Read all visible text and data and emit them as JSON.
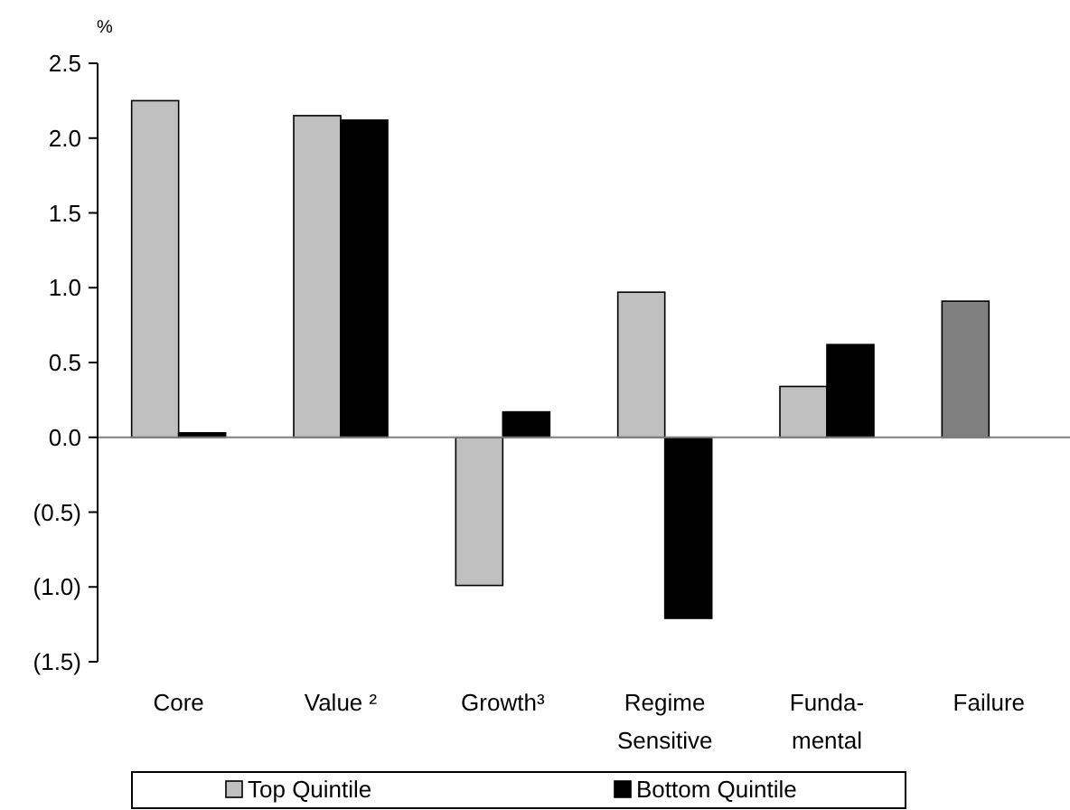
{
  "chart_data": {
    "type": "bar",
    "ylabel": "%",
    "categories": [
      "Core",
      "Value ²",
      "Growth³",
      "Regime\nSensitive",
      "Funda-\nmental",
      "Failure"
    ],
    "series": [
      {
        "name": "Top Quintile",
        "color": "#c0c0c0",
        "colors": [
          "#c0c0c0",
          "#c0c0c0",
          "#c0c0c0",
          "#c0c0c0",
          "#c0c0c0",
          "#808080"
        ],
        "values": [
          2.25,
          2.15,
          -0.99,
          0.97,
          0.34,
          0.91
        ]
      },
      {
        "name": "Bottom Quintile",
        "color": "#000000",
        "values": [
          0.03,
          2.12,
          0.17,
          -1.21,
          0.62,
          null
        ]
      }
    ],
    "ylim": [
      -1.5,
      2.5
    ],
    "yticks": [
      {
        "value": -1.5,
        "label": "(1.5)"
      },
      {
        "value": -1,
        "label": "(1.0)"
      },
      {
        "value": -0.5,
        "label": "(0.5)"
      },
      {
        "value": 0,
        "label": "0.0"
      },
      {
        "value": 0.5,
        "label": "0.5"
      },
      {
        "value": 1,
        "label": "1.0"
      },
      {
        "value": 1.5,
        "label": "1.5"
      },
      {
        "value": 2,
        "label": "2.0"
      },
      {
        "value": 2.5,
        "label": "2.5"
      }
    ],
    "legend": "bottom"
  }
}
